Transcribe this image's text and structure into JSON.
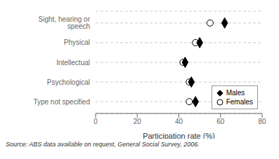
{
  "chart_data": {
    "type": "scatter",
    "orientation": "horizontal",
    "categories": [
      "Sight, hearing or speech",
      "Physical",
      "Intellectual",
      "Psychological",
      "Type not specified"
    ],
    "series": [
      {
        "name": "Males",
        "color": "#000000",
        "marker": "diamond",
        "values": [
          62,
          50,
          43,
          46,
          48
        ]
      },
      {
        "name": "Females",
        "color": "#ffffff",
        "marker": "circle",
        "values": [
          55,
          48,
          42,
          45,
          45
        ]
      }
    ],
    "xlabel": "Participation rate (%)",
    "xlim": [
      0,
      80
    ],
    "xticks": [
      0,
      20,
      40,
      60,
      80
    ],
    "grid": true,
    "legend": "lower right",
    "annotation": "Source: ABS data available on request, General Social Survey, 2006."
  }
}
